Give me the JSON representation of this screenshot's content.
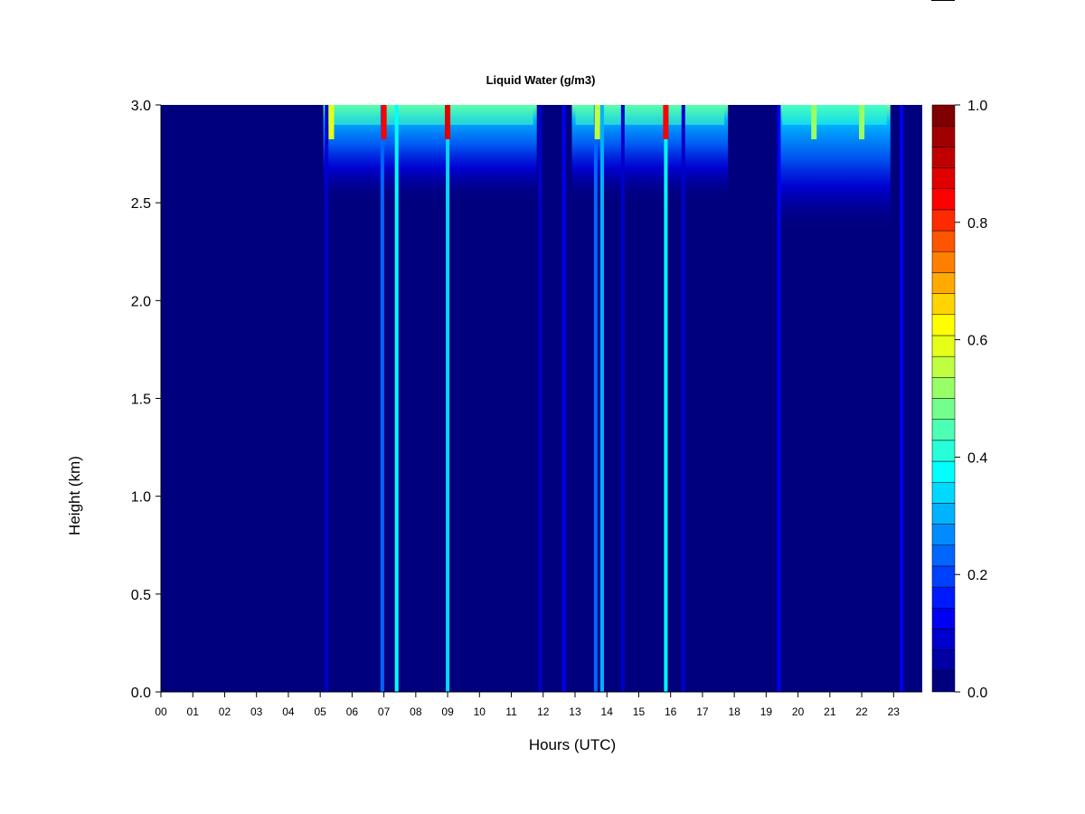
{
  "chart_data": {
    "type": "heatmap",
    "title": "Liquid Water (g/m3)",
    "xlabel": "Hours (UTC)",
    "ylabel": "Height (km)",
    "x_ticks": [
      "00",
      "01",
      "02",
      "03",
      "04",
      "05",
      "06",
      "07",
      "08",
      "09",
      "10",
      "11",
      "12",
      "13",
      "14",
      "15",
      "16",
      "17",
      "18",
      "19",
      "20",
      "21",
      "22",
      "23"
    ],
    "xlim": [
      0,
      23.9
    ],
    "y_ticks": [
      "0.0",
      "0.5",
      "1.0",
      "1.5",
      "2.0",
      "2.5",
      "3.0"
    ],
    "ylim": [
      0,
      3.0
    ],
    "colorbar": {
      "range": [
        0,
        1.0
      ],
      "step": 0.05,
      "tick_labels": [
        "0.0",
        "0.2",
        "0.4",
        "0.6",
        "0.8",
        "1.0"
      ],
      "colors": [
        "#00007f",
        "#0000a5",
        "#0000cc",
        "#0000f2",
        "#001aff",
        "#0040ff",
        "#0066ff",
        "#008cff",
        "#00b3ff",
        "#00d9ff",
        "#00ffff",
        "#26ffd9",
        "#4dffb3",
        "#73ff8c",
        "#99ff66",
        "#bfff40",
        "#e6ff19",
        "#ffff00",
        "#ffd400",
        "#ffaa00",
        "#ff8000",
        "#ff5500",
        "#ff2b00",
        "#ff0000",
        "#e00000",
        "#c00000",
        "#a00000",
        "#7f0000"
      ]
    },
    "cloud_layers": [
      {
        "start": 5.1,
        "end": 11.8,
        "top_value": 0.45,
        "base_km": 2.5
      },
      {
        "start": 12.9,
        "end": 17.8,
        "top_value": 0.45,
        "base_km": 2.5
      },
      {
        "start": 19.4,
        "end": 22.9,
        "top_value": 0.42,
        "base_km": 2.35
      }
    ],
    "columns": [
      {
        "hour": 5.2,
        "value": 0.08
      },
      {
        "hour": 6.95,
        "value": 0.22
      },
      {
        "hour": 7.4,
        "value": 0.38
      },
      {
        "hour": 9.0,
        "value": 0.34
      },
      {
        "hour": 11.9,
        "value": 0.07
      },
      {
        "hour": 12.65,
        "value": 0.12
      },
      {
        "hour": 13.65,
        "value": 0.22
      },
      {
        "hour": 13.85,
        "value": 0.3
      },
      {
        "hour": 14.5,
        "value": 0.08
      },
      {
        "hour": 15.85,
        "value": 0.38
      },
      {
        "hour": 16.4,
        "value": 0.08
      },
      {
        "hour": 19.4,
        "value": 0.1
      },
      {
        "hour": 23.25,
        "value": 0.1
      }
    ],
    "peaks": [
      {
        "hour": 5.35,
        "value": 0.6
      },
      {
        "hour": 7.0,
        "value": 0.85
      },
      {
        "hour": 9.0,
        "value": 0.9
      },
      {
        "hour": 13.7,
        "value": 0.55
      },
      {
        "hour": 15.85,
        "value": 0.85
      },
      {
        "hour": 20.5,
        "value": 0.5
      },
      {
        "hour": 22.0,
        "value": 0.5
      }
    ]
  }
}
